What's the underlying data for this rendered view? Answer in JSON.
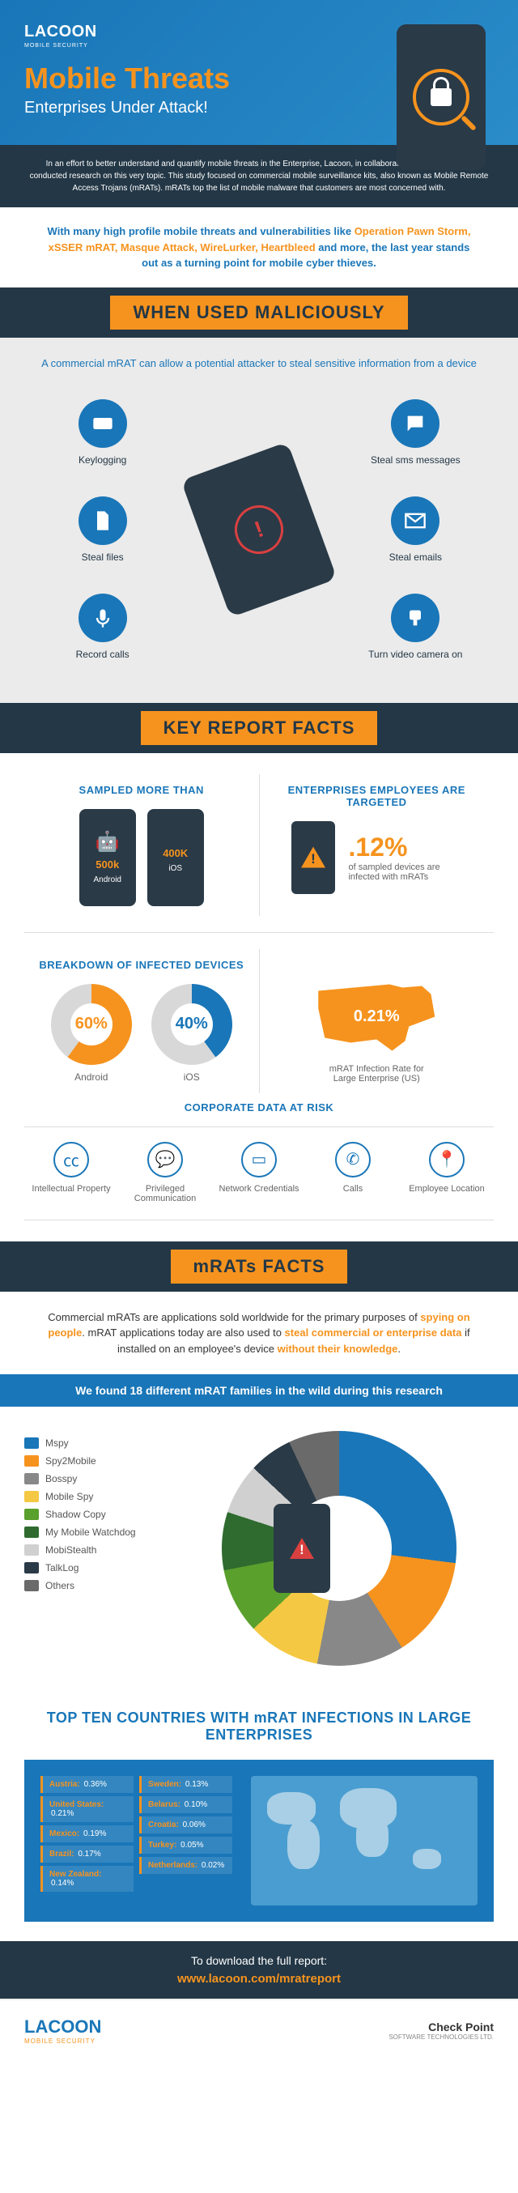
{
  "header": {
    "logo": "LACOON",
    "logo_sub": "MOBILE SECURITY",
    "title": "Mobile Threats",
    "subtitle": "Enterprises Under Attack!"
  },
  "intro": "In an effort to better understand and quantify mobile threats in the Enterprise, Lacoon, in collaboration with Check Point conducted research on this very topic. This study focused on commercial mobile surveillance kits, also known as Mobile Remote Access Trojans (mRATs). mRATs top the list of mobile malware that customers are most concerned with.",
  "threats": {
    "lead_blue": "With many high profile mobile threats and vulnerabilities like",
    "names": "Operation Pawn Storm, xSSER mRAT, Masque Attack, WireLurker, Heartbleed",
    "trail_blue": "and more, the last year stands out as a turning point for mobile cyber thieves."
  },
  "section_malicious": "WHEN USED MALICIOUSLY",
  "malicious_caption": "A commercial mRAT can allow a potential attacker to steal sensitive information from a device",
  "malicious_items": {
    "keylogging": "Keylogging",
    "steal_sms": "Steal sms messages",
    "steal_files": "Steal files",
    "steal_emails": "Steal emails",
    "record_calls": "Record calls",
    "video_camera": "Turn video camera on"
  },
  "section_facts": "KEY REPORT FACTS",
  "sampled": {
    "title": "SAMPLED MORE THAN",
    "android_count": "500k",
    "android_label": "Android",
    "ios_count": "400K",
    "ios_label": "iOS"
  },
  "targeted": {
    "title": "ENTERPRISES EMPLOYEES ARE TARGETED",
    "pct": ".12%",
    "desc": "of sampled devices are infected with mRATs"
  },
  "breakdown": {
    "title": "BREAKDOWN OF INFECTED DEVICES",
    "android_pct": "60%",
    "android_label": "Android",
    "ios_pct": "40%",
    "ios_label": "iOS"
  },
  "us_rate": {
    "pct": "0.21%",
    "desc": "mRAT Infection Rate for Large Enterprise (US)"
  },
  "risk": {
    "title": "CORPORATE DATA AT RISK",
    "items": [
      "Intellectual Property",
      "Privileged Communication",
      "Network Credentials",
      "Calls",
      "Employee Location"
    ]
  },
  "section_mrats": "mRATs FACTS",
  "mrats_text": {
    "p1a": "Commercial mRATs are applications sold worldwide for the primary purposes of ",
    "p1b": "spying on people",
    "p1c": ". mRAT applications today are also used to ",
    "p1d": "steal commercial or enterprise data",
    "p1e": " if installed on an employee's device ",
    "p1f": "without their knowledge",
    "p1g": "."
  },
  "found_bar": "We found 18 different mRAT families in the wild during this research",
  "families": [
    {
      "name": "Mspy",
      "color": "#1976b8",
      "pct": 27
    },
    {
      "name": "Spy2Mobile",
      "color": "#f6931e",
      "pct": 14
    },
    {
      "name": "Bosspy",
      "color": "#888888",
      "pct": 12
    },
    {
      "name": "Mobile Spy",
      "color": "#f5c843",
      "pct": 10
    },
    {
      "name": "Shadow Copy",
      "color": "#5aa02c",
      "pct": 9
    },
    {
      "name": "My Mobile Watchdog",
      "color": "#2f6b2f",
      "pct": 8
    },
    {
      "name": "MobiStealth",
      "color": "#d0d0d0",
      "pct": 7
    },
    {
      "name": "TalkLog",
      "color": "#2a3a47",
      "pct": 6
    },
    {
      "name": "Others",
      "color": "#6a6a6a",
      "pct": 7
    }
  ],
  "top10": {
    "title": "TOP TEN COUNTRIES WITH mRAT INFECTIONS IN LARGE ENTERPRISES",
    "countries": [
      {
        "name": "Austria",
        "pct": "0.36%"
      },
      {
        "name": "United States",
        "pct": "0.21%"
      },
      {
        "name": "Mexico",
        "pct": "0.19%"
      },
      {
        "name": "Brazil",
        "pct": "0.17%"
      },
      {
        "name": "New Zealand",
        "pct": "0.14%"
      },
      {
        "name": "Sweden",
        "pct": "0.13%"
      },
      {
        "name": "Belarus",
        "pct": "0.10%"
      },
      {
        "name": "Croatia",
        "pct": "0.06%"
      },
      {
        "name": "Turkey",
        "pct": "0.05%"
      },
      {
        "name": "Netherlands",
        "pct": "0.02%"
      }
    ]
  },
  "download": {
    "label": "To download the full report:",
    "url": "www.lacoon.com/mratreport"
  },
  "footer": {
    "left": "LACOON",
    "left_sub": "MOBILE SECURITY",
    "right": "Check Point",
    "right_sub": "SOFTWARE TECHNOLOGIES LTD."
  }
}
